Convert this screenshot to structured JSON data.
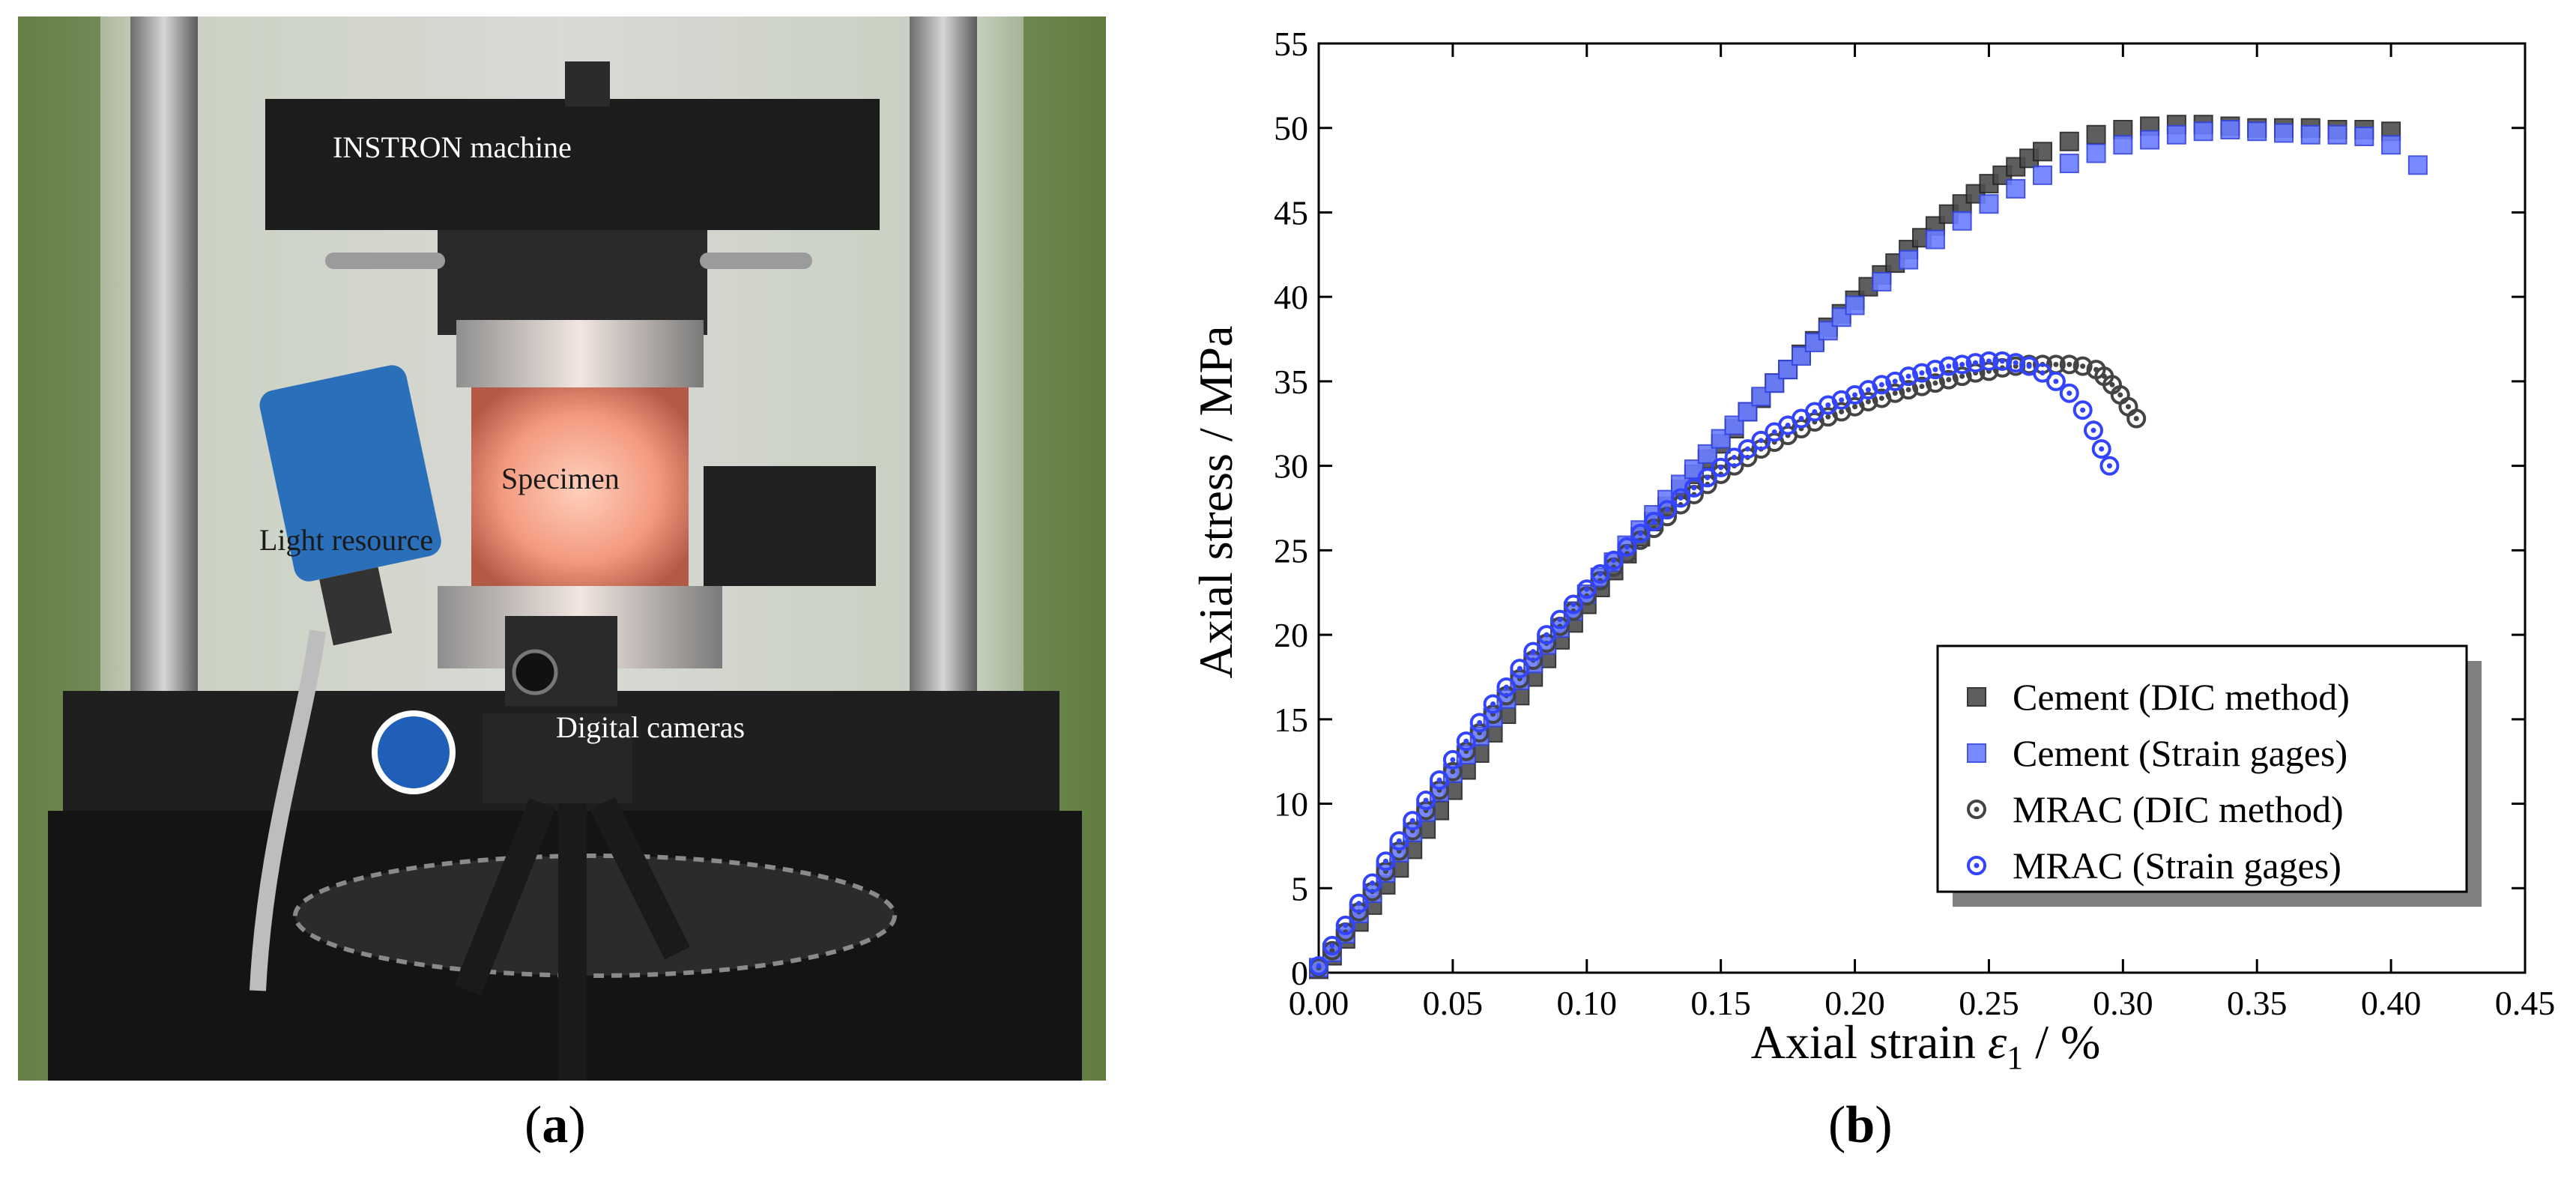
{
  "photo": {
    "labels": {
      "machine": "INSTRON machine",
      "specimen": "Specimen",
      "light": "Light resource",
      "cameras": "Digital cameras"
    },
    "caption": "a"
  },
  "chart_caption": "b",
  "chart_data": {
    "type": "scatter",
    "title": "",
    "xlabel_prefix": "Axial strain ",
    "xlabel_symbol": "ε",
    "xlabel_subscript": "1",
    "xlabel_suffix": " / %",
    "ylabel": "Axial stress / MPa",
    "xlim": [
      0,
      0.45
    ],
    "ylim": [
      0,
      55
    ],
    "xticks": [
      "0.00",
      "0.05",
      "0.10",
      "0.15",
      "0.20",
      "0.25",
      "0.30",
      "0.35",
      "0.40",
      "0.45"
    ],
    "yticks": [
      "0",
      "5",
      "10",
      "15",
      "20",
      "25",
      "30",
      "35",
      "40",
      "45",
      "50",
      "55"
    ],
    "grid": false,
    "legend_position": "bottom-right",
    "series": [
      {
        "name": "Cement (DIC method)",
        "marker": "square",
        "color": "#4d4d4d",
        "edge": "#222222",
        "points": [
          [
            0.0,
            0.2
          ],
          [
            0.005,
            1.0
          ],
          [
            0.01,
            2.0
          ],
          [
            0.015,
            3.0
          ],
          [
            0.02,
            4.0
          ],
          [
            0.025,
            5.2
          ],
          [
            0.03,
            6.2
          ],
          [
            0.035,
            7.3
          ],
          [
            0.04,
            8.5
          ],
          [
            0.045,
            9.6
          ],
          [
            0.05,
            10.8
          ],
          [
            0.055,
            12.0
          ],
          [
            0.06,
            13.0
          ],
          [
            0.065,
            14.2
          ],
          [
            0.07,
            15.3
          ],
          [
            0.075,
            16.4
          ],
          [
            0.08,
            17.5
          ],
          [
            0.085,
            18.6
          ],
          [
            0.09,
            19.7
          ],
          [
            0.095,
            20.7
          ],
          [
            0.1,
            21.8
          ],
          [
            0.105,
            22.8
          ],
          [
            0.11,
            23.8
          ],
          [
            0.115,
            24.8
          ],
          [
            0.12,
            25.8
          ],
          [
            0.125,
            26.7
          ],
          [
            0.13,
            27.6
          ],
          [
            0.135,
            28.6
          ],
          [
            0.14,
            29.5
          ],
          [
            0.145,
            30.4
          ],
          [
            0.15,
            31.3
          ],
          [
            0.155,
            32.2
          ],
          [
            0.16,
            33.2
          ],
          [
            0.165,
            34.0
          ],
          [
            0.17,
            34.9
          ],
          [
            0.175,
            35.7
          ],
          [
            0.18,
            36.6
          ],
          [
            0.185,
            37.4
          ],
          [
            0.19,
            38.2
          ],
          [
            0.195,
            39.0
          ],
          [
            0.2,
            39.8
          ],
          [
            0.205,
            40.6
          ],
          [
            0.21,
            41.3
          ],
          [
            0.215,
            42.0
          ],
          [
            0.22,
            42.8
          ],
          [
            0.225,
            43.5
          ],
          [
            0.23,
            44.2
          ],
          [
            0.235,
            44.9
          ],
          [
            0.24,
            45.5
          ],
          [
            0.245,
            46.1
          ],
          [
            0.25,
            46.7
          ],
          [
            0.255,
            47.2
          ],
          [
            0.26,
            47.7
          ],
          [
            0.265,
            48.2
          ],
          [
            0.27,
            48.6
          ],
          [
            0.28,
            49.2
          ],
          [
            0.29,
            49.6
          ],
          [
            0.3,
            49.9
          ],
          [
            0.31,
            50.1
          ],
          [
            0.32,
            50.2
          ],
          [
            0.33,
            50.2
          ],
          [
            0.34,
            50.1
          ],
          [
            0.35,
            50.0
          ],
          [
            0.36,
            50.0
          ],
          [
            0.37,
            50.0
          ],
          [
            0.38,
            49.9
          ],
          [
            0.39,
            49.9
          ],
          [
            0.4,
            49.8
          ]
        ]
      },
      {
        "name": "Cement (Strain gages)",
        "marker": "square",
        "color": "#6b7dff",
        "edge": "#3344dd",
        "points": [
          [
            0.0,
            0.3
          ],
          [
            0.005,
            1.2
          ],
          [
            0.01,
            2.3
          ],
          [
            0.015,
            3.5
          ],
          [
            0.02,
            4.7
          ],
          [
            0.025,
            5.9
          ],
          [
            0.03,
            7.1
          ],
          [
            0.035,
            8.3
          ],
          [
            0.04,
            9.5
          ],
          [
            0.045,
            10.7
          ],
          [
            0.05,
            11.8
          ],
          [
            0.055,
            12.9
          ],
          [
            0.06,
            14.0
          ],
          [
            0.065,
            15.1
          ],
          [
            0.07,
            16.2
          ],
          [
            0.075,
            17.3
          ],
          [
            0.08,
            18.3
          ],
          [
            0.085,
            19.4
          ],
          [
            0.09,
            20.4
          ],
          [
            0.095,
            21.4
          ],
          [
            0.1,
            22.4
          ],
          [
            0.105,
            23.4
          ],
          [
            0.11,
            24.3
          ],
          [
            0.115,
            25.3
          ],
          [
            0.12,
            26.2
          ],
          [
            0.125,
            27.1
          ],
          [
            0.13,
            28.0
          ],
          [
            0.135,
            28.9
          ],
          [
            0.14,
            29.8
          ],
          [
            0.145,
            30.7
          ],
          [
            0.15,
            31.6
          ],
          [
            0.155,
            32.4
          ],
          [
            0.16,
            33.2
          ],
          [
            0.165,
            34.1
          ],
          [
            0.17,
            34.9
          ],
          [
            0.175,
            35.7
          ],
          [
            0.18,
            36.5
          ],
          [
            0.185,
            37.3
          ],
          [
            0.19,
            38.0
          ],
          [
            0.195,
            38.8
          ],
          [
            0.2,
            39.5
          ],
          [
            0.21,
            40.9
          ],
          [
            0.22,
            42.2
          ],
          [
            0.23,
            43.4
          ],
          [
            0.24,
            44.5
          ],
          [
            0.25,
            45.5
          ],
          [
            0.26,
            46.4
          ],
          [
            0.27,
            47.2
          ],
          [
            0.28,
            47.9
          ],
          [
            0.29,
            48.5
          ],
          [
            0.3,
            49.0
          ],
          [
            0.31,
            49.3
          ],
          [
            0.32,
            49.6
          ],
          [
            0.33,
            49.8
          ],
          [
            0.34,
            49.9
          ],
          [
            0.35,
            49.8
          ],
          [
            0.36,
            49.7
          ],
          [
            0.37,
            49.6
          ],
          [
            0.38,
            49.6
          ],
          [
            0.39,
            49.5
          ],
          [
            0.4,
            49.0
          ],
          [
            0.41,
            47.8
          ]
        ]
      },
      {
        "name": "MRAC (DIC method)",
        "marker": "circle",
        "color": "#444444",
        "edge": "#333333",
        "points": [
          [
            0.0,
            0.3
          ],
          [
            0.005,
            1.3
          ],
          [
            0.01,
            2.4
          ],
          [
            0.015,
            3.6
          ],
          [
            0.02,
            4.8
          ],
          [
            0.025,
            6.0
          ],
          [
            0.03,
            7.2
          ],
          [
            0.035,
            8.4
          ],
          [
            0.04,
            9.6
          ],
          [
            0.045,
            10.8
          ],
          [
            0.05,
            11.9
          ],
          [
            0.055,
            13.1
          ],
          [
            0.06,
            14.2
          ],
          [
            0.065,
            15.3
          ],
          [
            0.07,
            16.4
          ],
          [
            0.075,
            17.4
          ],
          [
            0.08,
            18.5
          ],
          [
            0.085,
            19.5
          ],
          [
            0.09,
            20.5
          ],
          [
            0.095,
            21.4
          ],
          [
            0.1,
            22.3
          ],
          [
            0.105,
            23.2
          ],
          [
            0.11,
            24.0
          ],
          [
            0.115,
            24.8
          ],
          [
            0.12,
            25.6
          ],
          [
            0.125,
            26.3
          ],
          [
            0.13,
            27.0
          ],
          [
            0.135,
            27.7
          ],
          [
            0.14,
            28.3
          ],
          [
            0.145,
            28.9
          ],
          [
            0.15,
            29.5
          ],
          [
            0.155,
            30.0
          ],
          [
            0.16,
            30.5
          ],
          [
            0.165,
            31.0
          ],
          [
            0.17,
            31.4
          ],
          [
            0.175,
            31.8
          ],
          [
            0.18,
            32.2
          ],
          [
            0.185,
            32.6
          ],
          [
            0.19,
            32.9
          ],
          [
            0.195,
            33.2
          ],
          [
            0.2,
            33.5
          ],
          [
            0.205,
            33.8
          ],
          [
            0.21,
            34.0
          ],
          [
            0.215,
            34.3
          ],
          [
            0.22,
            34.5
          ],
          [
            0.225,
            34.7
          ],
          [
            0.23,
            34.9
          ],
          [
            0.235,
            35.1
          ],
          [
            0.24,
            35.3
          ],
          [
            0.245,
            35.5
          ],
          [
            0.25,
            35.6
          ],
          [
            0.255,
            35.8
          ],
          [
            0.26,
            35.9
          ],
          [
            0.265,
            36.0
          ],
          [
            0.27,
            36.0
          ],
          [
            0.275,
            36.0
          ],
          [
            0.28,
            36.0
          ],
          [
            0.285,
            35.9
          ],
          [
            0.29,
            35.7
          ],
          [
            0.293,
            35.3
          ],
          [
            0.296,
            34.8
          ],
          [
            0.299,
            34.2
          ],
          [
            0.302,
            33.5
          ],
          [
            0.305,
            32.8
          ]
        ]
      },
      {
        "name": "MRAC (Strain gages)",
        "marker": "circle",
        "color": "#3344ff",
        "edge": "#2233ee",
        "points": [
          [
            0.0,
            0.4
          ],
          [
            0.005,
            1.6
          ],
          [
            0.01,
            2.8
          ],
          [
            0.015,
            4.1
          ],
          [
            0.02,
            5.3
          ],
          [
            0.025,
            6.6
          ],
          [
            0.03,
            7.8
          ],
          [
            0.035,
            9.0
          ],
          [
            0.04,
            10.2
          ],
          [
            0.045,
            11.4
          ],
          [
            0.05,
            12.6
          ],
          [
            0.055,
            13.7
          ],
          [
            0.06,
            14.8
          ],
          [
            0.065,
            15.9
          ],
          [
            0.07,
            16.9
          ],
          [
            0.075,
            18.0
          ],
          [
            0.08,
            19.0
          ],
          [
            0.085,
            20.0
          ],
          [
            0.09,
            20.9
          ],
          [
            0.095,
            21.8
          ],
          [
            0.1,
            22.7
          ],
          [
            0.105,
            23.6
          ],
          [
            0.11,
            24.4
          ],
          [
            0.115,
            25.2
          ],
          [
            0.12,
            26.0
          ],
          [
            0.125,
            26.7
          ],
          [
            0.13,
            27.4
          ],
          [
            0.135,
            28.1
          ],
          [
            0.14,
            28.7
          ],
          [
            0.145,
            29.3
          ],
          [
            0.15,
            29.9
          ],
          [
            0.155,
            30.5
          ],
          [
            0.16,
            31.0
          ],
          [
            0.165,
            31.5
          ],
          [
            0.17,
            32.0
          ],
          [
            0.175,
            32.4
          ],
          [
            0.18,
            32.8
          ],
          [
            0.185,
            33.2
          ],
          [
            0.19,
            33.6
          ],
          [
            0.195,
            33.9
          ],
          [
            0.2,
            34.2
          ],
          [
            0.205,
            34.5
          ],
          [
            0.21,
            34.8
          ],
          [
            0.215,
            35.0
          ],
          [
            0.22,
            35.3
          ],
          [
            0.225,
            35.5
          ],
          [
            0.23,
            35.7
          ],
          [
            0.235,
            35.9
          ],
          [
            0.24,
            36.0
          ],
          [
            0.245,
            36.1
          ],
          [
            0.25,
            36.2
          ],
          [
            0.255,
            36.2
          ],
          [
            0.26,
            36.1
          ],
          [
            0.265,
            35.9
          ],
          [
            0.27,
            35.5
          ],
          [
            0.275,
            35.0
          ],
          [
            0.28,
            34.3
          ],
          [
            0.285,
            33.3
          ],
          [
            0.289,
            32.1
          ],
          [
            0.292,
            31.0
          ],
          [
            0.295,
            30.0
          ]
        ]
      }
    ]
  }
}
